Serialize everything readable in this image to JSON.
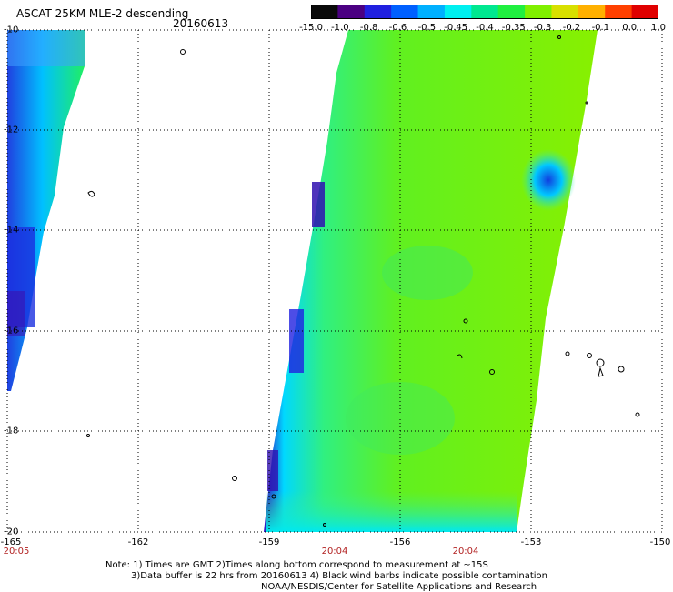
{
  "header": {
    "title": "ASCAT 25KM MLE-2 descending",
    "date": "20160613"
  },
  "colorbar": {
    "labels": [
      "-15.0",
      "-1.0",
      "-0.8",
      "-0.6",
      "-0.5",
      "-0.45",
      "-0.4",
      "-0.35",
      "-0.3",
      "-0.2",
      "-0.1",
      "0.0",
      "1.0"
    ],
    "colors": [
      "#0a0a0a",
      "#4b0082",
      "#2020e0",
      "#0060ff",
      "#00b0ff",
      "#00f0f0",
      "#00e890",
      "#20f040",
      "#80f000",
      "#d8e000",
      "#ffb000",
      "#ff4000",
      "#e00000"
    ]
  },
  "axes": {
    "lat_labels": [
      "-10",
      "-12",
      "-14",
      "-16",
      "-18",
      "-20"
    ],
    "lon_labels": [
      "-165",
      "-162",
      "-159",
      "-156",
      "-153",
      "-150"
    ],
    "lat_range": [
      -20,
      -10
    ],
    "lon_range": [
      -165,
      -150
    ]
  },
  "times": [
    "20:05",
    "20:04",
    "20:04"
  ],
  "notes": {
    "line1": "Note: 1) Times are GMT 2)Times along bottom correspond to measurement at ~15S",
    "line2": "3)Data buffer is 22 hrs from 20160613 4) Black wind barbs indicate possible contamination",
    "line3": "NOAA/NESDIS/Center for Satellite Applications and Research"
  }
}
